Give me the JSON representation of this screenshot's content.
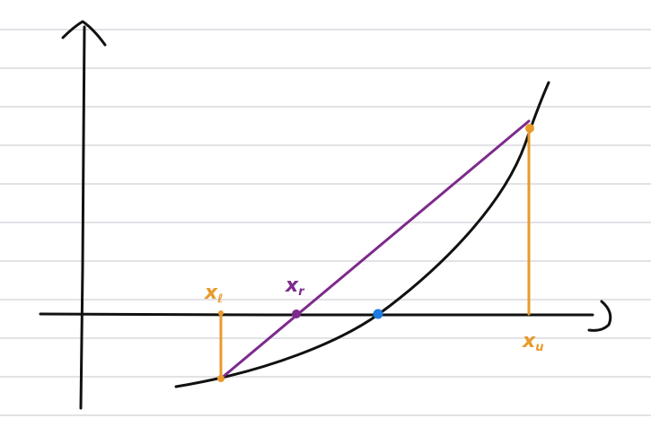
{
  "diagram": {
    "labels": {
      "x_lower": "x",
      "x_lower_sub": "ℓ",
      "x_root": "x",
      "x_root_sub": "r",
      "x_upper": "x",
      "x_upper_sub": "u"
    },
    "colors": {
      "paper_line": "#d9d9df",
      "axis": "#111111",
      "curve": "#111111",
      "chord": "#7d2a8c",
      "bracket": "#e89a2b",
      "true_root": "#1f7be0"
    },
    "elements": [
      "ruled-paper-lines",
      "y-axis-with-arrow",
      "x-axis-with-arrow",
      "convex-function-curve",
      "secant-chord",
      "lower-bound-vertical",
      "upper-bound-vertical",
      "false-position-point",
      "true-root-point"
    ]
  }
}
